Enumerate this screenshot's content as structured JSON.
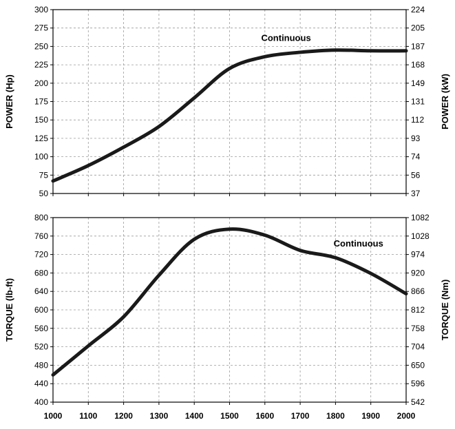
{
  "chart_data": [
    {
      "type": "line",
      "title": "",
      "xlabel": "",
      "ylabel": "POWER (Hp)",
      "y2label": "POWER (kW)",
      "xlim": [
        1000,
        2000
      ],
      "ylim": [
        50,
        300
      ],
      "y2lim": [
        37,
        224
      ],
      "x_ticks": [
        "1000",
        "1100",
        "1200",
        "1300",
        "1400",
        "1500",
        "1600",
        "1700",
        "1800",
        "1900",
        "2000"
      ],
      "y_ticks": [
        "300",
        "275",
        "250",
        "225",
        "200",
        "175",
        "150",
        "125",
        "100",
        "75",
        "50"
      ],
      "y2_ticks": [
        "224",
        "205",
        "187",
        "168",
        "149",
        "131",
        "112",
        "93",
        "74",
        "56",
        "37"
      ],
      "grid": true,
      "annotation": {
        "text": "Continuous",
        "x": 1660,
        "y": 262
      },
      "series": [
        {
          "x": [
            1000,
            1100,
            1200,
            1300,
            1400,
            1500,
            1600,
            1700,
            1800,
            1900,
            2000
          ],
          "values": [
            67,
            88,
            113,
            141,
            180,
            220,
            236,
            242,
            245,
            244,
            244
          ]
        }
      ]
    },
    {
      "type": "line",
      "title": "",
      "xlabel": "",
      "ylabel": "TORQUE (lb-ft)",
      "y2label": "TORQUE (Nm)",
      "xlim": [
        1000,
        2000
      ],
      "ylim": [
        400,
        800
      ],
      "y2lim": [
        542,
        1082
      ],
      "x_ticks": [
        "1000",
        "1100",
        "1200",
        "1300",
        "1400",
        "1500",
        "1600",
        "1700",
        "1800",
        "1900",
        "2000"
      ],
      "y_ticks": [
        "800",
        "760",
        "720",
        "680",
        "640",
        "600",
        "560",
        "520",
        "480",
        "440",
        "400"
      ],
      "y2_ticks": [
        "1082",
        "1028",
        "974",
        "920",
        "866",
        "812",
        "758",
        "704",
        "650",
        "596",
        "542"
      ],
      "grid": true,
      "annotation": {
        "text": "Continuous",
        "x": 1865,
        "y": 745
      },
      "series": [
        {
          "x": [
            1000,
            1100,
            1200,
            1300,
            1400,
            1500,
            1600,
            1700,
            1800,
            1900,
            2000
          ],
          "values": [
            459,
            522,
            585,
            675,
            753,
            775,
            762,
            729,
            713,
            679,
            635
          ]
        }
      ]
    }
  ]
}
